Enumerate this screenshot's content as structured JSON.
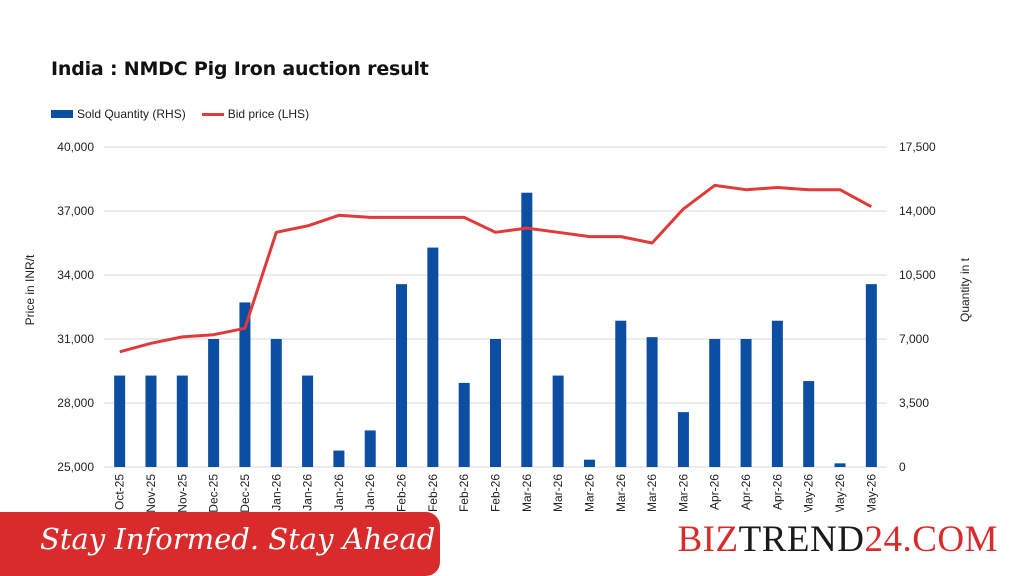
{
  "chart_data": {
    "type": "bar+line",
    "title": "India : NMDC Pig Iron auction result",
    "ylabel_left": "Price in INR/t",
    "ylabel_right": "Quantity in t",
    "left_axis": {
      "min": 25000,
      "max": 40000,
      "ticks": [
        25000,
        28000,
        31000,
        34000,
        37000,
        40000
      ],
      "tick_labels": [
        "25,000",
        "28,000",
        "31,000",
        "34,000",
        "37,000",
        "40,000"
      ]
    },
    "right_axis": {
      "min": 0,
      "max": 17500,
      "ticks": [
        0,
        3500,
        7000,
        10500,
        14000,
        17500
      ],
      "tick_labels": [
        "0",
        "3,500",
        "7,000",
        "10,500",
        "14,000",
        "17,500"
      ]
    },
    "categories": [
      "Oct-25",
      "Nov-25",
      "Nov-25",
      "Dec-25",
      "Dec-25",
      "Jan-26",
      "Jan-26",
      "Jan-26",
      "Jan-26",
      "Feb-26",
      "Feb-26",
      "Feb-26",
      "Feb-26",
      "Mar-26",
      "Mar-26",
      "Mar-26",
      "Mar-26",
      "Mar-26",
      "Mar-26",
      "Apr-26",
      "Apr-26",
      "Apr-26",
      "May-26",
      "May-26",
      "May-26"
    ],
    "series": [
      {
        "name": "Sold Quantity (RHS)",
        "type": "bar",
        "axis": "right",
        "color": "#0b4ea2",
        "values": [
          5000,
          5000,
          5000,
          7000,
          9000,
          7000,
          5000,
          900,
          2000,
          10000,
          12000,
          4600,
          7000,
          15000,
          5000,
          400,
          8000,
          7100,
          3000,
          7000,
          7000,
          8000,
          4700,
          200,
          10000
        ]
      },
      {
        "name": "Bid price (LHS)",
        "type": "line",
        "axis": "left",
        "color": "#e03a3a",
        "values": [
          30400,
          30800,
          31100,
          31200,
          31500,
          36000,
          36300,
          36800,
          36700,
          36700,
          36700,
          36700,
          36000,
          36200,
          36000,
          35800,
          35800,
          35500,
          37100,
          38200,
          38000,
          38100,
          38000,
          38000,
          37200
        ]
      }
    ],
    "legend_position": "top-left",
    "grid": "horizontal"
  },
  "footer": {
    "tagline": "Stay Informed. Stay Ahead",
    "brand_part1": "BIZ",
    "brand_part2": "TREND",
    "brand_part3": "24.COM"
  }
}
